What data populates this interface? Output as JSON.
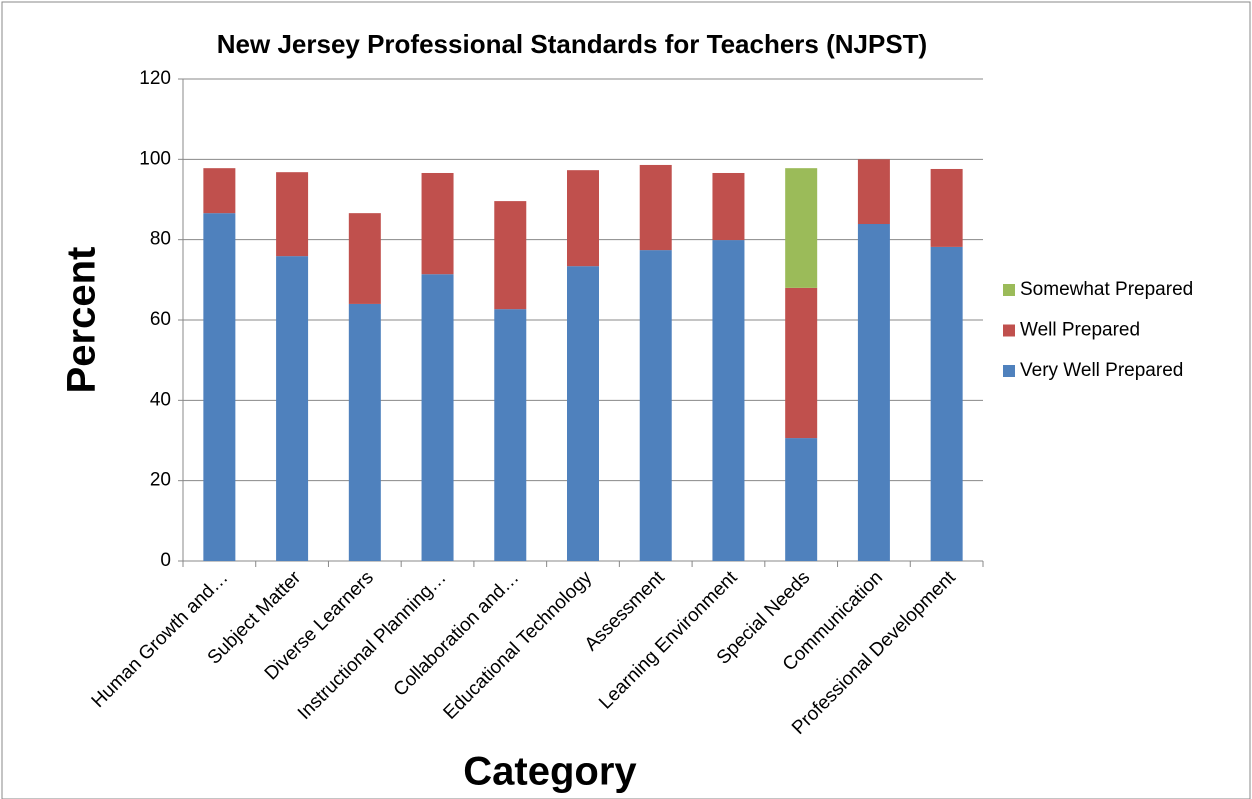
{
  "chart_data": {
    "type": "bar",
    "stacked": true,
    "title": "New Jersey Professional Standards for Teachers (NJPST)",
    "x_label": "Category",
    "y_label": "Percent",
    "categories": [
      "Human Growth and…",
      "Subject Matter",
      "Diverse Learners",
      "Instructional Planning…",
      "Collaboration and…",
      "Educational Technology",
      "Assessment",
      "Learning Environment",
      "Special Needs",
      "Communication",
      "Professional Development"
    ],
    "series": [
      {
        "name": "Very Well Prepared",
        "color": "#4f81bd",
        "values": [
          86.6,
          75.9,
          64.0,
          71.4,
          62.7,
          73.4,
          77.4,
          79.9,
          30.6,
          83.9,
          78.2
        ]
      },
      {
        "name": "Well Prepared",
        "color": "#c0504d",
        "values": [
          11.2,
          20.9,
          22.6,
          25.2,
          26.9,
          23.9,
          21.2,
          16.7,
          37.4,
          16.1,
          19.4
        ]
      },
      {
        "name": "Somewhat Prepared",
        "color": "#9bbb59",
        "values": [
          null,
          null,
          null,
          null,
          null,
          null,
          null,
          null,
          29.8,
          null,
          null
        ]
      }
    ],
    "ylim": [
      0,
      120
    ],
    "yticks": [
      0,
      20,
      40,
      60,
      80,
      100,
      120
    ],
    "grid": true,
    "legend": "right"
  }
}
